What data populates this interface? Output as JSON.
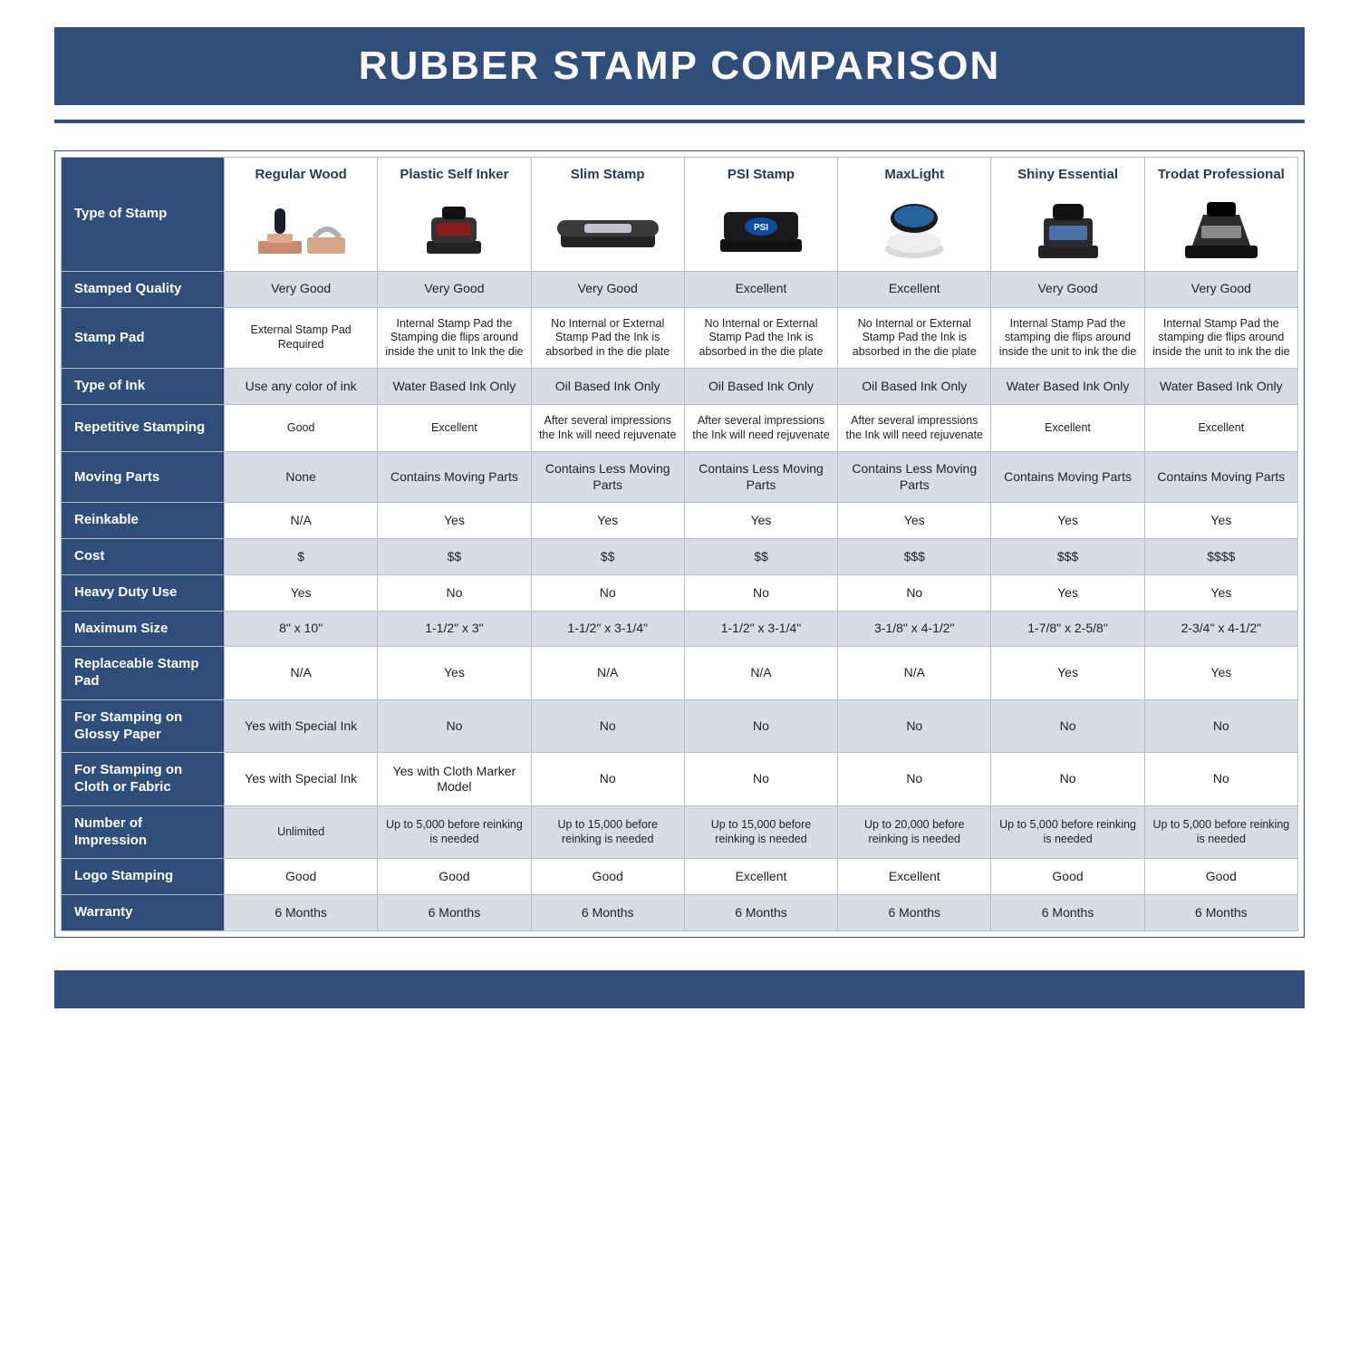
{
  "title": "RUBBER STAMP COMPARISON",
  "colors": {
    "navy": "#2f4f7a",
    "alt_row": "#d8dde5",
    "cell_border": "#b8bec8",
    "white": "#ffffff"
  },
  "columns": [
    {
      "label": "Regular Wood",
      "icon": "wood"
    },
    {
      "label": "Plastic Self Inker",
      "icon": "self-inker"
    },
    {
      "label": "Slim Stamp",
      "icon": "slim"
    },
    {
      "label": "PSI Stamp",
      "icon": "psi"
    },
    {
      "label": "MaxLight",
      "icon": "maxlight"
    },
    {
      "label": "Shiny Essential",
      "icon": "shiny"
    },
    {
      "label": "Trodat Professional",
      "icon": "trodat"
    }
  ],
  "row_header_first": "Type of Stamp",
  "rows": [
    {
      "label": "Stamped Quality",
      "alt": true,
      "cells": [
        "Very Good",
        "Very Good",
        "Very Good",
        "Excellent",
        "Excellent",
        "Very Good",
        "Very Good"
      ]
    },
    {
      "label": "Stamp Pad",
      "alt": false,
      "small": true,
      "cells": [
        "External Stamp Pad Required",
        "Internal Stamp Pad the Stamping die flips around inside the unit to Ink the die",
        "No Internal or External Stamp Pad the Ink is absorbed in the die plate",
        "No Internal or External Stamp Pad the Ink is absorbed in the die plate",
        "No Internal or External Stamp Pad the Ink is absorbed in the die plate",
        "Internal Stamp Pad the stamping die flips around inside the unit to ink the die",
        "Internal Stamp Pad the stamping die flips around inside the unit to ink the die"
      ]
    },
    {
      "label": "Type of Ink",
      "alt": true,
      "cells": [
        "Use any color of ink",
        "Water Based Ink Only",
        "Oil Based Ink Only",
        "Oil Based Ink Only",
        "Oil Based Ink Only",
        "Water Based Ink Only",
        "Water Based Ink Only"
      ]
    },
    {
      "label": "Repetitive Stamping",
      "alt": false,
      "small": true,
      "cells": [
        "Good",
        "Excellent",
        "After several impressions the Ink will need rejuvenate",
        "After several impressions the Ink will need rejuvenate",
        "After several impressions the Ink will need rejuvenate",
        "Excellent",
        "Excellent"
      ]
    },
    {
      "label": "Moving Parts",
      "alt": true,
      "cells": [
        "None",
        "Contains Moving Parts",
        "Contains Less Moving Parts",
        "Contains Less Moving Parts",
        "Contains Less Moving Parts",
        "Contains Moving Parts",
        "Contains Moving Parts"
      ]
    },
    {
      "label": "Reinkable",
      "alt": false,
      "cells": [
        "N/A",
        "Yes",
        "Yes",
        "Yes",
        "Yes",
        "Yes",
        "Yes"
      ]
    },
    {
      "label": "Cost",
      "alt": true,
      "cells": [
        "$",
        "$$",
        "$$",
        "$$",
        "$$$",
        "$$$",
        "$$$$"
      ]
    },
    {
      "label": "Heavy Duty Use",
      "alt": false,
      "cells": [
        "Yes",
        "No",
        "No",
        "No",
        "No",
        "Yes",
        "Yes"
      ]
    },
    {
      "label": "Maximum Size",
      "alt": true,
      "cells": [
        "8\" x 10\"",
        "1-1/2\" x 3\"",
        "1-1/2\" x 3-1/4\"",
        "1-1/2\" x 3-1/4\"",
        "3-1/8\" x 4-1/2\"",
        "1-7/8\" x 2-5/8\"",
        "2-3/4\" x 4-1/2\""
      ]
    },
    {
      "label": "Replaceable Stamp Pad",
      "alt": false,
      "cells": [
        "N/A",
        "Yes",
        "N/A",
        "N/A",
        "N/A",
        "Yes",
        "Yes"
      ]
    },
    {
      "label": "For Stamping on Glossy Paper",
      "alt": true,
      "cells": [
        "Yes with Special Ink",
        "No",
        "No",
        "No",
        "No",
        "No",
        "No"
      ]
    },
    {
      "label": "For Stamping on Cloth or Fabric",
      "alt": false,
      "cells": [
        "Yes with Special Ink",
        "Yes with Cloth Marker Model",
        "No",
        "No",
        "No",
        "No",
        "No"
      ]
    },
    {
      "label": "Number of Impression",
      "alt": true,
      "small": true,
      "cells": [
        "Unlimited",
        "Up to 5,000 before reinking is needed",
        "Up to 15,000 before reinking is needed",
        "Up to 15,000 before reinking is needed",
        "Up to 20,000 before reinking is needed",
        "Up to 5,000 before reinking is needed",
        "Up to 5,000 before reinking is needed"
      ]
    },
    {
      "label": "Logo Stamping",
      "alt": false,
      "cells": [
        "Good",
        "Good",
        "Good",
        "Excellent",
        "Excellent",
        "Good",
        "Good"
      ]
    },
    {
      "label": "Warranty",
      "alt": true,
      "cells": [
        "6 Months",
        "6 Months",
        "6 Months",
        "6 Months",
        "6 Months",
        "6 Months",
        "6 Months"
      ]
    }
  ]
}
